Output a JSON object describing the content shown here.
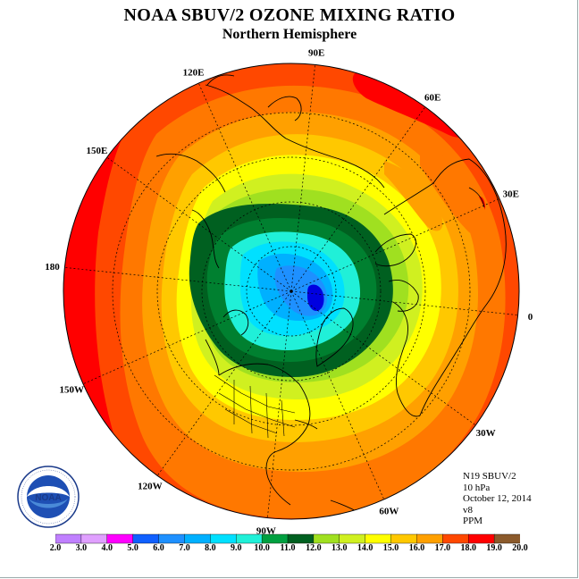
{
  "title": "NOAA SBUV/2 OZONE MIXING RATIO",
  "subtitle": "Northern Hemisphere",
  "longitude_labels": [
    "90E",
    "60E",
    "30E",
    "0",
    "30W",
    "60W",
    "90W",
    "120W",
    "150W",
    "180",
    "150E",
    "120E"
  ],
  "info": {
    "instrument": "N19 SBUV/2",
    "pressure": "10 hPa",
    "date": "October 12, 2014",
    "version": "v8",
    "units": "PPM"
  },
  "logo": {
    "text": "NOAA",
    "ring_text": "NATIONAL OCEANIC AND ATMOSPHERIC ADMINISTRATION · U.S. DEPARTMENT OF COMMERCE"
  },
  "colorbar": {
    "ticks": [
      "2.0",
      "3.0",
      "4.0",
      "5.0",
      "6.0",
      "7.0",
      "8.0",
      "9.0",
      "10.0",
      "11.0",
      "12.0",
      "13.0",
      "14.0",
      "15.0",
      "16.0",
      "17.0",
      "18.0",
      "19.0",
      "20.0"
    ],
    "colors": [
      "#c080ff",
      "#e0a0ff",
      "#ff00ff",
      "#0000e0",
      "#1060ff",
      "#1e90ff",
      "#00b0ff",
      "#00e0ff",
      "#20f0d8",
      "#00a040",
      "#008030",
      "#006020",
      "#a0e020",
      "#d0f020",
      "#ffff00",
      "#ffc800",
      "#ffa000",
      "#ff7800",
      "#ff4800",
      "#ff0000",
      "#8b5a2b"
    ]
  },
  "map": {
    "levels": [
      {
        "value": 18.5,
        "color": "#ff0000"
      },
      {
        "value": 17.5,
        "color": "#ff4800"
      },
      {
        "value": 16.5,
        "color": "#ff7800"
      },
      {
        "value": 15.5,
        "color": "#ffa000"
      },
      {
        "value": 14.5,
        "color": "#ffc800"
      },
      {
        "value": 13.5,
        "color": "#ffff00"
      },
      {
        "value": 12.5,
        "color": "#d0f020"
      },
      {
        "value": 11.5,
        "color": "#a0e020"
      },
      {
        "value": 10.5,
        "color": "#006020"
      },
      {
        "value": 9.5,
        "color": "#008030"
      },
      {
        "value": 8.5,
        "color": "#20f0d8"
      },
      {
        "value": 7.5,
        "color": "#00e0ff"
      },
      {
        "value": 6.5,
        "color": "#00b0ff"
      },
      {
        "value": 5.5,
        "color": "#1e90ff"
      },
      {
        "value": 4.5,
        "color": "#0000e0"
      }
    ]
  }
}
